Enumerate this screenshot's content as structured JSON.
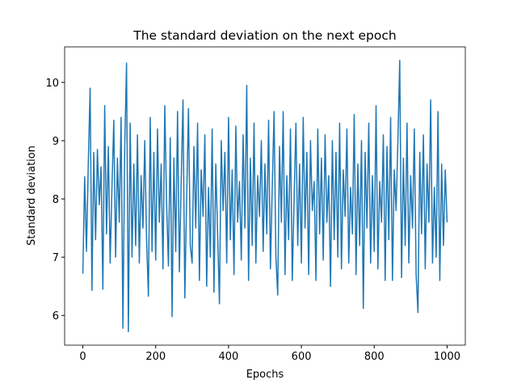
{
  "chart_data": {
    "type": "line",
    "title": "The standard deviation on the next epoch",
    "xlabel": "Epochs",
    "ylabel": "Standard deviation",
    "x": [
      0,
      5,
      10,
      15,
      20,
      25,
      30,
      35,
      40,
      45,
      50,
      55,
      60,
      65,
      70,
      75,
      80,
      85,
      90,
      95,
      100,
      105,
      110,
      115,
      120,
      125,
      130,
      135,
      140,
      145,
      150,
      155,
      160,
      165,
      170,
      175,
      180,
      185,
      190,
      195,
      200,
      205,
      210,
      215,
      220,
      225,
      230,
      235,
      240,
      245,
      250,
      255,
      260,
      265,
      270,
      275,
      280,
      285,
      290,
      295,
      300,
      305,
      310,
      315,
      320,
      325,
      330,
      335,
      340,
      345,
      350,
      355,
      360,
      365,
      370,
      375,
      380,
      385,
      390,
      395,
      400,
      405,
      410,
      415,
      420,
      425,
      430,
      435,
      440,
      445,
      450,
      455,
      460,
      465,
      470,
      475,
      480,
      485,
      490,
      495,
      500,
      505,
      510,
      515,
      520,
      525,
      530,
      535,
      540,
      545,
      550,
      555,
      560,
      565,
      570,
      575,
      580,
      585,
      590,
      595,
      600,
      605,
      610,
      615,
      620,
      625,
      630,
      635,
      640,
      645,
      650,
      655,
      660,
      665,
      670,
      675,
      680,
      685,
      690,
      695,
      700,
      705,
      710,
      715,
      720,
      725,
      730,
      735,
      740,
      745,
      750,
      755,
      760,
      765,
      770,
      775,
      780,
      785,
      790,
      795,
      800,
      805,
      810,
      815,
      820,
      825,
      830,
      835,
      840,
      845,
      850,
      855,
      860,
      865,
      870,
      875,
      880,
      885,
      890,
      895,
      900,
      905,
      910,
      915,
      920,
      925,
      930,
      935,
      940,
      945,
      950,
      955,
      960,
      965,
      970,
      975,
      980,
      985,
      990,
      995,
      1000
    ],
    "series": [
      {
        "name": "std",
        "color": "#1f77b4",
        "values": [
          6.72,
          8.38,
          7.1,
          8.61,
          9.9,
          6.43,
          8.8,
          7.3,
          8.85,
          7.9,
          8.55,
          6.45,
          9.6,
          7.4,
          8.9,
          6.9,
          8.2,
          9.35,
          7.0,
          8.7,
          7.6,
          9.4,
          5.78,
          8.9,
          10.33,
          5.72,
          9.3,
          7.0,
          8.6,
          7.2,
          9.1,
          6.9,
          8.4,
          7.5,
          9.0,
          7.3,
          6.33,
          9.4,
          7.1,
          8.8,
          6.95,
          9.2,
          7.6,
          8.6,
          6.8,
          9.6,
          7.9,
          6.85,
          9.05,
          5.98,
          8.7,
          7.1,
          9.5,
          6.75,
          8.3,
          9.7,
          6.3,
          8.0,
          9.55,
          7.2,
          6.9,
          8.9,
          7.5,
          9.3,
          6.6,
          8.5,
          7.7,
          9.1,
          6.5,
          8.2,
          7.0,
          9.2,
          6.4,
          8.6,
          7.4,
          6.2,
          9.0,
          7.8,
          8.8,
          6.9,
          9.4,
          7.3,
          8.5,
          6.7,
          9.25,
          7.6,
          8.3,
          6.95,
          9.1,
          7.5,
          9.95,
          6.6,
          8.7,
          7.2,
          9.3,
          6.9,
          8.4,
          7.7,
          9.0,
          7.1,
          8.6,
          7.4,
          9.35,
          6.8,
          8.2,
          9.5,
          7.0,
          6.35,
          8.9,
          7.6,
          9.5,
          6.7,
          8.4,
          7.3,
          9.2,
          6.6,
          8.0,
          9.3,
          7.2,
          8.6,
          6.9,
          9.4,
          7.5,
          8.8,
          6.7,
          9.0,
          7.8,
          8.3,
          6.6,
          9.2,
          7.4,
          8.7,
          6.95,
          9.1,
          7.6,
          8.4,
          6.5,
          9.0,
          7.3,
          8.8,
          7.0,
          9.3,
          6.8,
          8.5,
          7.7,
          9.2,
          6.9,
          8.2,
          7.4,
          9.45,
          6.7,
          8.6,
          7.2,
          9.0,
          6.12,
          8.8,
          7.5,
          9.3,
          6.9,
          8.4,
          7.1,
          9.6,
          6.8,
          8.3,
          7.6,
          9.1,
          6.6,
          8.9,
          7.3,
          9.4,
          6.6,
          8.5,
          7.8,
          9.0,
          10.38,
          6.65,
          8.7,
          7.2,
          9.3,
          6.9,
          8.4,
          7.5,
          9.2,
          6.7,
          6.05,
          8.8,
          7.4,
          9.1,
          6.8,
          8.6,
          7.6,
          9.7,
          6.9,
          8.2,
          7.0,
          9.5,
          6.6,
          8.6,
          7.2,
          8.5,
          7.6
        ]
      }
    ],
    "xlim": [
      -50,
      1050
    ],
    "ylim": [
      5.49,
      10.61
    ],
    "xticks": [
      0,
      200,
      400,
      600,
      800,
      1000
    ],
    "yticks": [
      6,
      7,
      8,
      9,
      10
    ]
  }
}
